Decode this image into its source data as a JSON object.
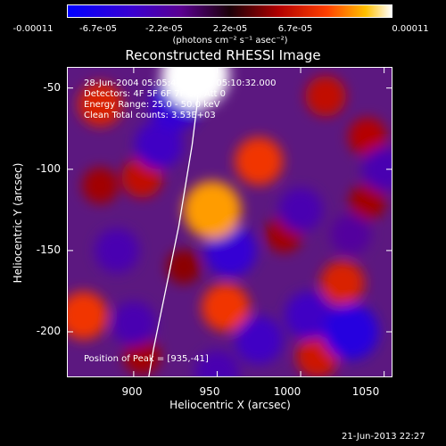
{
  "colorbar": {
    "ticks": [
      "-0.00011",
      "-6.7e-05",
      "-2.2e-05",
      "2.2e-05",
      "6.7e-05",
      "0.00011"
    ],
    "unit_label": "(photons cm⁻² s⁻¹ asec⁻²)",
    "range": [
      -0.00011,
      0.00011
    ]
  },
  "chart_data": {
    "type": "heatmap",
    "title": "Reconstructed RHESSI Image",
    "xlabel": "Heliocentric X (arcsec)",
    "ylabel": "Heliocentric Y (arcsec)",
    "xlim": [
      860,
      1055
    ],
    "ylim": [
      -228,
      -37
    ],
    "x_ticks": [
      "900",
      "950",
      "1000",
      "1050"
    ],
    "y_ticks": [
      "-50",
      "-100",
      "-150",
      "-200"
    ],
    "annotations": {
      "time": "28-Jun-2004 05:05:44.000 to 05:10:32.000",
      "detectors": "Detectors: 4F 5F 6F 7F 8F, Att 0",
      "energy": "Energy Range: 25.0 - 50.0 keV",
      "clean": "Clean     Total counts: 3.53E+03",
      "peak": "Position of Peak = [935,-41]"
    },
    "peak": [
      935,
      -41
    ],
    "limb_curve": [
      [
        940,
        -37
      ],
      [
        938,
        -60
      ],
      [
        935,
        -85
      ],
      [
        931,
        -110
      ],
      [
        927,
        -135
      ],
      [
        922,
        -160
      ],
      [
        917,
        -185
      ],
      [
        912,
        -210
      ],
      [
        909,
        -228
      ]
    ],
    "blobs": [
      {
        "x": 937,
        "y": -42,
        "v": 0.00011
      },
      {
        "x": 947,
        "y": -125,
        "v": 8.5e-05
      },
      {
        "x": 975,
        "y": -95,
        "v": 6e-05
      },
      {
        "x": 880,
        "y": -60,
        "v": 5e-05
      },
      {
        "x": 905,
        "y": -105,
        "v": 4e-05
      },
      {
        "x": 1015,
        "y": -55,
        "v": 4e-05
      },
      {
        "x": 1040,
        "y": -80,
        "v": 3.5e-05
      },
      {
        "x": 990,
        "y": -140,
        "v": 3e-05
      },
      {
        "x": 870,
        "y": -190,
        "v": 6e-05
      },
      {
        "x": 880,
        "y": -110,
        "v": 3e-05
      },
      {
        "x": 955,
        "y": -185,
        "v": 6e-05
      },
      {
        "x": 1025,
        "y": -170,
        "v": 5e-05
      },
      {
        "x": 1040,
        "y": -120,
        "v": 3e-05
      },
      {
        "x": 1010,
        "y": -215,
        "v": 4.5e-05
      },
      {
        "x": 930,
        "y": -160,
        "v": 2.5e-05
      },
      {
        "x": 905,
        "y": -215,
        "v": 3e-05
      },
      {
        "x": 925,
        "y": -60,
        "v": -7e-05
      },
      {
        "x": 915,
        "y": -85,
        "v": -6e-05
      },
      {
        "x": 958,
        "y": -150,
        "v": -7e-05
      },
      {
        "x": 1005,
        "y": -190,
        "v": -6e-05
      },
      {
        "x": 1030,
        "y": -200,
        "v": -8e-05
      },
      {
        "x": 1000,
        "y": -125,
        "v": -5e-05
      },
      {
        "x": 890,
        "y": -150,
        "v": -5e-05
      },
      {
        "x": 975,
        "y": -205,
        "v": -6e-05
      },
      {
        "x": 1030,
        "y": -140,
        "v": -4e-05
      },
      {
        "x": 1050,
        "y": -100,
        "v": -5e-05
      },
      {
        "x": 900,
        "y": -195,
        "v": -5e-05
      },
      {
        "x": 950,
        "y": -225,
        "v": -5e-05
      }
    ]
  },
  "footer": {
    "timestamp": "21-Jun-2013 22:27"
  }
}
